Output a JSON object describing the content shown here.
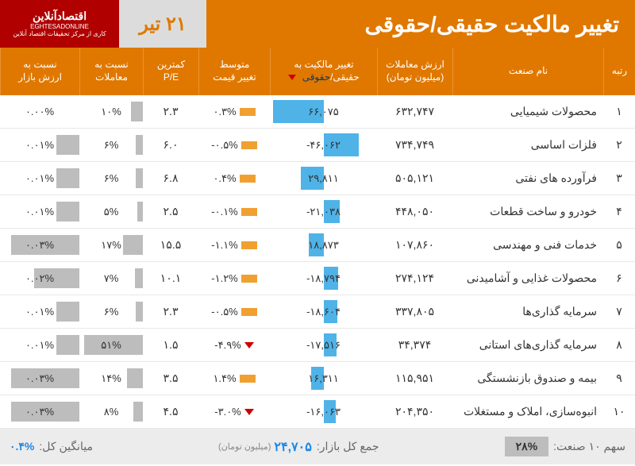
{
  "header": {
    "title": "تغییر مالکیت حقیقی/حقوقی",
    "date": "۲۱ تیر",
    "logo_main": "اقتصادآنلاین",
    "logo_en": "EGHTESADONLINE",
    "logo_sub": "کاری از مرکز تحقیقات اقتصاد آنلاین"
  },
  "columns": {
    "rank": "رتبه",
    "name": "نام صنعت",
    "value": "ارزش معاملات\n(میلیون تومان)",
    "change": "تغییر مالکیت به",
    "change_switch_real": "حقیقی",
    "change_switch_legal": "حقوقی",
    "avg": "متوسط\nتغییر قیمت",
    "pe": "کمترین\nP/E",
    "trade": "نسبت به\nمعاملات",
    "market": "نسبت به\nارزش بازار"
  },
  "chart": {
    "change_max_abs": 70000,
    "trade_max": 55,
    "market_max": 0.035,
    "bar_color": "#4fb3e8",
    "minibar_color": "#f0a030",
    "grey_bar": "#bdbdbd"
  },
  "rows": [
    {
      "rank": "۱",
      "name": "محصولات شیمیایی",
      "value": "۶۳۲,۷۴۷",
      "change_num": 66075,
      "change_txt": "۶۶,۰۷۵",
      "avg_pct": "۰.۳%",
      "avg_dir": "bar",
      "pe": "۲.۳",
      "trade_pct": 10,
      "trade_txt": "۱۰%",
      "market_pct": 0.0,
      "market_txt": "۰.۰۰%"
    },
    {
      "rank": "۲",
      "name": "فلزات اساسی",
      "value": "۷۳۴,۷۴۹",
      "change_num": -46062,
      "change_txt": "-۴۶,۰۶۲",
      "avg_pct": "-۰.۵%",
      "avg_dir": "bar",
      "pe": "۶.۰",
      "trade_pct": 6,
      "trade_txt": "۶%",
      "market_pct": 0.01,
      "market_txt": "۰.۰۱%"
    },
    {
      "rank": "۳",
      "name": "فرآورده های نفتی",
      "value": "۵۰۵,۱۲۱",
      "change_num": 29811,
      "change_txt": "۲۹,۸۱۱",
      "avg_pct": "۰.۴%",
      "avg_dir": "bar",
      "pe": "۶.۸",
      "trade_pct": 6,
      "trade_txt": "۶%",
      "market_pct": 0.01,
      "market_txt": "۰.۰۱%"
    },
    {
      "rank": "۴",
      "name": "خودرو و ساخت قطعات",
      "value": "۴۴۸,۰۵۰",
      "change_num": -21038,
      "change_txt": "-۲۱,۰۳۸",
      "avg_pct": "-۰.۱%",
      "avg_dir": "bar",
      "pe": "۲.۵",
      "trade_pct": 5,
      "trade_txt": "۵%",
      "market_pct": 0.01,
      "market_txt": "۰.۰۱%"
    },
    {
      "rank": "۵",
      "name": "خدمات فنی و مهندسی",
      "value": "۱۰۷,۸۶۰",
      "change_num": 18873,
      "change_txt": "۱۸,۸۷۳",
      "avg_pct": "-۱.۱%",
      "avg_dir": "bar",
      "pe": "۱۵.۵",
      "trade_pct": 17,
      "trade_txt": "۱۷%",
      "market_pct": 0.03,
      "market_txt": "۰.۰۳%"
    },
    {
      "rank": "۶",
      "name": "محصولات غذایی و آشامیدنی",
      "value": "۲۷۴,۱۲۴",
      "change_num": -18794,
      "change_txt": "-۱۸,۷۹۴",
      "avg_pct": "-۱.۲%",
      "avg_dir": "bar",
      "pe": "۱۰.۱",
      "trade_pct": 7,
      "trade_txt": "۷%",
      "market_pct": 0.02,
      "market_txt": "۰.۰۲%"
    },
    {
      "rank": "۷",
      "name": "سرمایه گذاری‌ها",
      "value": "۳۳۷,۸۰۵",
      "change_num": -18604,
      "change_txt": "-۱۸,۶۰۴",
      "avg_pct": "-۰.۵%",
      "avg_dir": "bar",
      "pe": "۲.۳",
      "trade_pct": 6,
      "trade_txt": "۶%",
      "market_pct": 0.01,
      "market_txt": "۰.۰۱%"
    },
    {
      "rank": "۸",
      "name": "سرمایه گذاری‌های استانی",
      "value": "۳۴,۳۷۴",
      "change_num": -17516,
      "change_txt": "-۱۷,۵۱۶",
      "avg_pct": "-۴.۹%",
      "avg_dir": "tri",
      "pe": "۱.۵",
      "trade_pct": 51,
      "trade_txt": "۵۱%",
      "market_pct": 0.01,
      "market_txt": "۰.۰۱%"
    },
    {
      "rank": "۹",
      "name": "بیمه و صندوق بازنشستگی",
      "value": "۱۱۵,۹۵۱",
      "change_num": 16311,
      "change_txt": "۱۶,۳۱۱",
      "avg_pct": "۱.۴%",
      "avg_dir": "bar",
      "pe": "۳.۵",
      "trade_pct": 14,
      "trade_txt": "۱۴%",
      "market_pct": 0.03,
      "market_txt": "۰.۰۳%"
    },
    {
      "rank": "۱۰",
      "name": "انبوه‌سازی، املاک و مستغلات",
      "value": "۲۰۴,۳۵۰",
      "change_num": -16063,
      "change_txt": "-۱۶,۰۶۳",
      "avg_pct": "-۳.۰%",
      "avg_dir": "tri",
      "pe": "۴.۵",
      "trade_pct": 8,
      "trade_txt": "۸%",
      "market_pct": 0.03,
      "market_txt": "۰.۰۳%"
    }
  ],
  "footer": {
    "share_label": "سهم ۱۰ صنعت:",
    "share_value": "۲۸%",
    "total_label": "جمع کل بازار:",
    "total_value": "۲۴,۷۰۵",
    "total_unit": "(میلیون تومان)",
    "avg_label": "میانگین کل:",
    "avg_value": "۰.۴%"
  }
}
